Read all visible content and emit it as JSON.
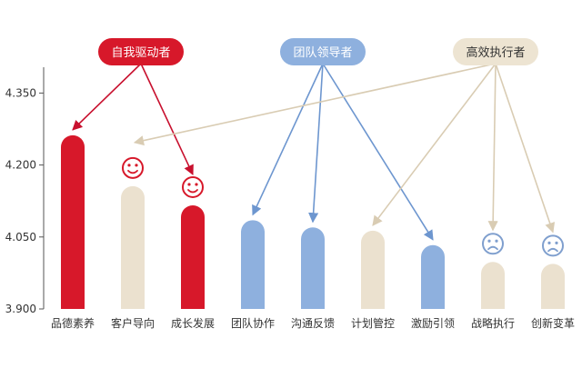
{
  "chart_data": {
    "type": "bar",
    "categories": [
      "品德素养",
      "客户导向",
      "成长发展",
      "团队协作",
      "沟通反馈",
      "计划管控",
      "激励引领",
      "战略执行",
      "创新变革"
    ],
    "values": [
      4.262,
      4.156,
      4.116,
      4.085,
      4.07,
      4.063,
      4.033,
      3.998,
      3.994
    ],
    "category_group": [
      "self",
      "exec",
      "self",
      "team",
      "team",
      "exec",
      "team",
      "exec",
      "exec"
    ],
    "face": [
      "",
      "smile",
      "smile",
      "",
      "",
      "",
      "",
      "frown",
      "frown"
    ],
    "ylim": [
      3.9,
      4.4
    ],
    "yticks": [
      "3.900",
      "4.050",
      "4.200",
      "4.350"
    ],
    "ytick_values": [
      3.9,
      4.05,
      4.2,
      4.35
    ],
    "groups": [
      {
        "key": "self",
        "label": "自我驱动者",
        "color": "#d7182a",
        "text_color": "#ffffff",
        "targets": [
          0,
          2
        ]
      },
      {
        "key": "team",
        "label": "团队领导者",
        "color": "#8eb0de",
        "text_color": "#ffffff",
        "targets": [
          3,
          4,
          6
        ]
      },
      {
        "key": "exec",
        "label": "高效执行者",
        "color": "#ede4d2",
        "text_color": "#333333",
        "targets": [
          1,
          5,
          7,
          8
        ]
      }
    ],
    "colors": {
      "self_bar": "#d7182a",
      "team_bar": "#8eb0de",
      "exec_bar": "#ebe1cf",
      "self_arrow": "#c8102e",
      "team_arrow": "#6d96cf",
      "exec_arrow": "#d9ccb3",
      "face": "#d7182a",
      "face_sad": "#7f9fce",
      "axis": "#555555"
    }
  }
}
